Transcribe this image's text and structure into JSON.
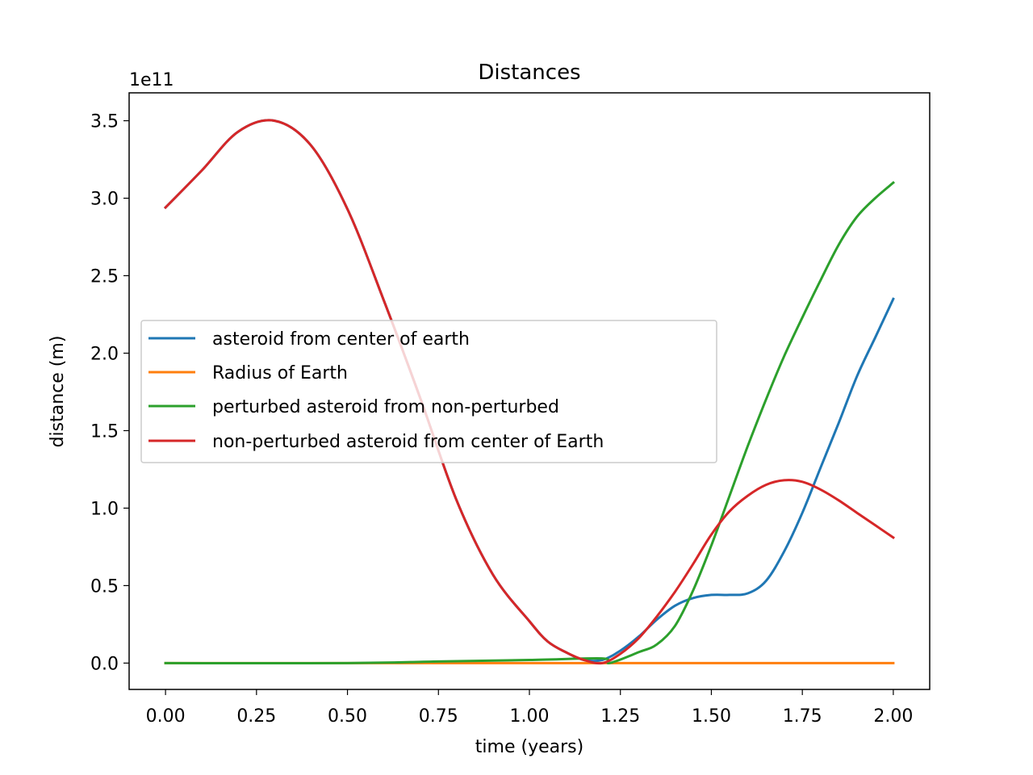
{
  "chart_data": {
    "type": "line",
    "title": "Distances",
    "xlabel": "time (years)",
    "ylabel": "distance (m)",
    "y_offset_label": "1e11",
    "xlim": [
      -0.1,
      2.1
    ],
    "ylim": [
      -0.17,
      3.68
    ],
    "y_scale_factor": 100000000000.0,
    "x_ticks": [
      0.0,
      0.25,
      0.5,
      0.75,
      1.0,
      1.25,
      1.5,
      1.75,
      2.0
    ],
    "x_tick_labels": [
      "0.00",
      "0.25",
      "0.50",
      "0.75",
      "1.00",
      "1.25",
      "1.50",
      "1.75",
      "2.00"
    ],
    "y_ticks": [
      0.0,
      0.5,
      1.0,
      1.5,
      2.0,
      2.5,
      3.0,
      3.5
    ],
    "y_tick_labels": [
      "0.0",
      "0.5",
      "1.0",
      "1.5",
      "2.0",
      "2.5",
      "3.0",
      "3.5"
    ],
    "grid": false,
    "legend_position": "center-left",
    "series": [
      {
        "name": "asteroid from center of earth",
        "color": "#1f77b4",
        "x": [
          0,
          0.1,
          0.2,
          0.3,
          0.4,
          0.5,
          0.6,
          0.7,
          0.8,
          0.9,
          1.0,
          1.05,
          1.1,
          1.15,
          1.2,
          1.25,
          1.3,
          1.35,
          1.4,
          1.45,
          1.5,
          1.55,
          1.6,
          1.65,
          1.7,
          1.75,
          1.8,
          1.85,
          1.9,
          1.95,
          2.0
        ],
        "y": [
          2.94,
          3.18,
          3.43,
          3.5,
          3.34,
          2.93,
          2.34,
          1.71,
          1.05,
          0.57,
          0.27,
          0.14,
          0.07,
          0.02,
          0.02,
          0.08,
          0.17,
          0.28,
          0.37,
          0.42,
          0.44,
          0.44,
          0.45,
          0.53,
          0.72,
          0.97,
          1.26,
          1.55,
          1.85,
          2.1,
          2.35
        ]
      },
      {
        "name": "Radius of Earth",
        "color": "#ff7f0e",
        "x": [
          0,
          2.0
        ],
        "y": [
          0.0,
          0.0
        ]
      },
      {
        "name": "perturbed asteroid from non-perturbed",
        "color": "#2ca02c",
        "x": [
          0,
          0.5,
          0.75,
          1.0,
          1.2,
          1.22,
          1.3,
          1.35,
          1.4,
          1.45,
          1.5,
          1.55,
          1.6,
          1.65,
          1.7,
          1.75,
          1.8,
          1.85,
          1.9,
          1.95,
          2.0
        ],
        "y": [
          0.0,
          0.0,
          0.01,
          0.02,
          0.03,
          0.0,
          0.07,
          0.12,
          0.24,
          0.47,
          0.76,
          1.08,
          1.4,
          1.7,
          1.98,
          2.23,
          2.47,
          2.7,
          2.88,
          3.0,
          3.1
        ]
      },
      {
        "name": "non-perturbed asteroid from center of Earth",
        "color": "#d62728",
        "x": [
          0,
          0.1,
          0.2,
          0.3,
          0.4,
          0.5,
          0.6,
          0.7,
          0.8,
          0.9,
          1.0,
          1.05,
          1.1,
          1.15,
          1.2,
          1.25,
          1.3,
          1.35,
          1.4,
          1.45,
          1.5,
          1.55,
          1.6,
          1.65,
          1.7,
          1.75,
          1.8,
          1.85,
          1.9,
          1.95,
          2.0
        ],
        "y": [
          2.94,
          3.18,
          3.43,
          3.5,
          3.34,
          2.93,
          2.34,
          1.71,
          1.05,
          0.57,
          0.27,
          0.14,
          0.07,
          0.02,
          0.0,
          0.06,
          0.16,
          0.3,
          0.46,
          0.64,
          0.83,
          0.98,
          1.08,
          1.15,
          1.18,
          1.17,
          1.12,
          1.05,
          0.97,
          0.89,
          0.81
        ]
      }
    ]
  }
}
